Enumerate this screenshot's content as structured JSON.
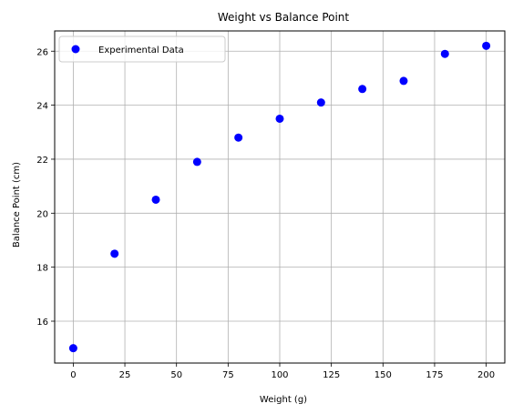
{
  "chart_data": {
    "type": "scatter",
    "title": "Weight vs Balance Point",
    "xlabel": "Weight (g)",
    "ylabel": "Balance Point (cm)",
    "xlim": [
      -9,
      209
    ],
    "ylim": [
      14.45,
      26.75
    ],
    "xticks": [
      0,
      25,
      50,
      75,
      100,
      125,
      150,
      175,
      200
    ],
    "yticks": [
      16,
      18,
      20,
      22,
      24,
      26
    ],
    "grid": true,
    "legend_position": "upper-left",
    "series": [
      {
        "name": "Experimental Data",
        "color": "#0000ff",
        "x": [
          0,
          20,
          40,
          60,
          80,
          100,
          120,
          140,
          160,
          180,
          200
        ],
        "y": [
          15.0,
          18.5,
          20.5,
          21.9,
          22.8,
          23.5,
          24.1,
          24.6,
          24.9,
          25.9,
          26.2
        ]
      }
    ]
  }
}
